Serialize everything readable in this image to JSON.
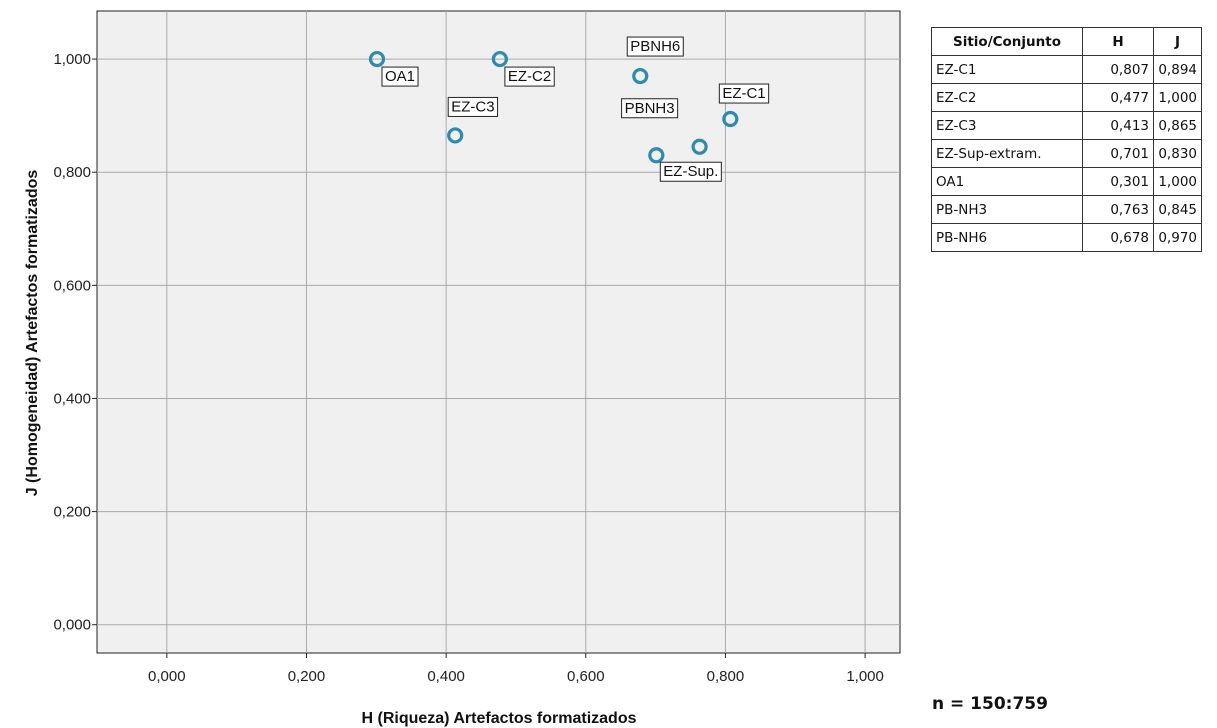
{
  "chart_data": {
    "type": "scatter",
    "xlabel": "H (Riqueza) Artefactos formatizados",
    "ylabel": "J (Homogeneidad) Artefactos formatizados",
    "xlim": [
      -0.1,
      1.05
    ],
    "ylim": [
      -0.05,
      1.085
    ],
    "xticks": [
      "0,000",
      "0,200",
      "0,400",
      "0,600",
      "0,800",
      "1,000"
    ],
    "yticks": [
      "0,000",
      "0,200",
      "0,400",
      "0,600",
      "0,800",
      "1,000"
    ],
    "grid": true,
    "marker_color": "#2e8bb0",
    "points": [
      {
        "label": "OA1",
        "x": 0.301,
        "y": 1.0
      },
      {
        "label": "EZ-C2",
        "x": 0.477,
        "y": 1.0
      },
      {
        "label": "PBNH6",
        "x": 0.678,
        "y": 0.97
      },
      {
        "label": "EZ-C1",
        "x": 0.807,
        "y": 0.894
      },
      {
        "label": "EZ-C3",
        "x": 0.413,
        "y": 0.865
      },
      {
        "label": "PBNH3",
        "x": 0.763,
        "y": 0.845
      },
      {
        "label": "EZ-Sup.",
        "x": 0.701,
        "y": 0.83
      }
    ]
  },
  "table": {
    "headers": [
      "Sitio/Conjunto",
      "H",
      "J"
    ],
    "rows": [
      [
        "EZ-C1",
        "0,807",
        "0,894"
      ],
      [
        "EZ-C2",
        "0,477",
        "1,000"
      ],
      [
        "EZ-C3",
        "0,413",
        "0,865"
      ],
      [
        "EZ-Sup-extram.",
        "0,701",
        "0,830"
      ],
      [
        "OA1",
        "0,301",
        "1,000"
      ],
      [
        "PB-NH3",
        "0,763",
        "0,845"
      ],
      [
        "PB-NH6",
        "0,678",
        "0,970"
      ]
    ]
  },
  "note": "n = 150:759"
}
